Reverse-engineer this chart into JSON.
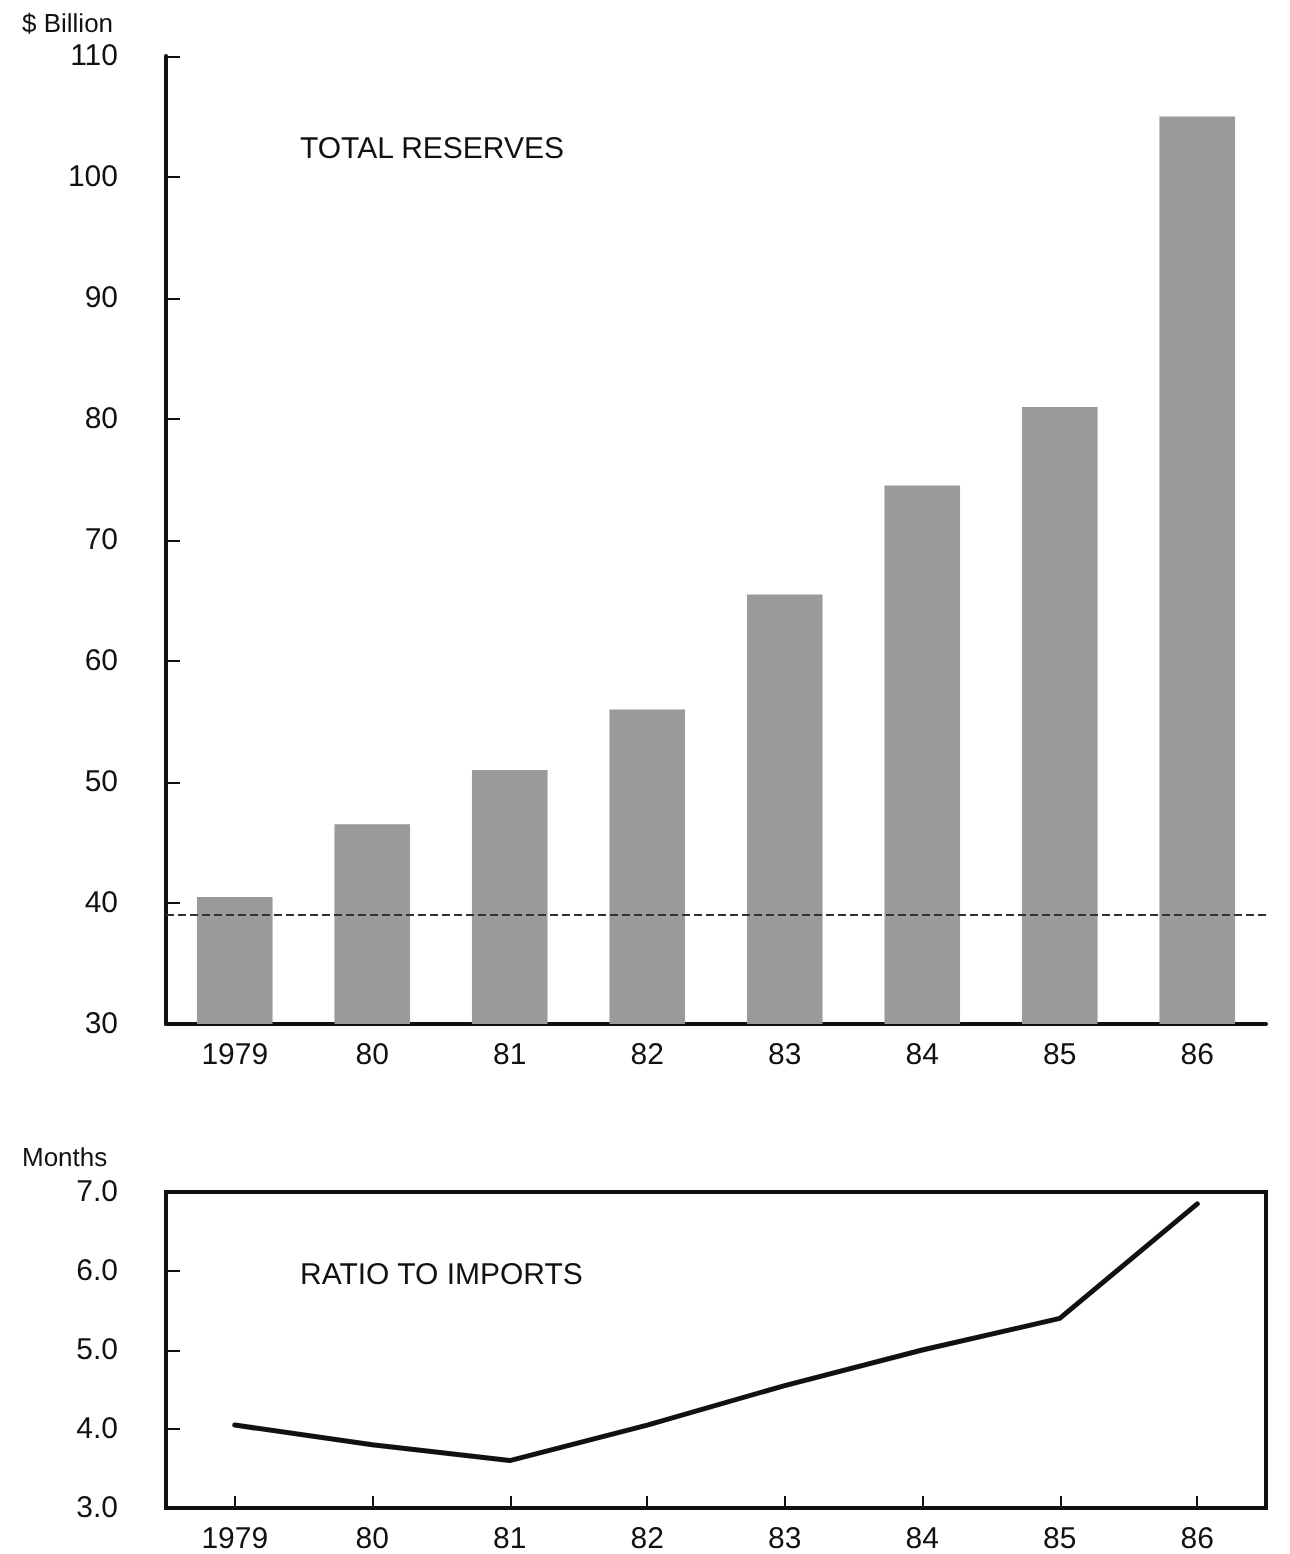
{
  "chart_data": [
    {
      "type": "bar",
      "title": "TOTAL RESERVES",
      "ylabel": "$ Billion",
      "categories": [
        "1979",
        "80",
        "81",
        "82",
        "83",
        "84",
        "85",
        "86"
      ],
      "series": [
        {
          "color": "#9a9a9a",
          "values": [
            40.5,
            46.5,
            51,
            56,
            65.5,
            74.5,
            81,
            105
          ]
        }
      ],
      "ylim": [
        30,
        110
      ],
      "yticks": [
        30,
        40,
        50,
        60,
        70,
        80,
        90,
        100,
        110
      ],
      "grid": false,
      "ref_lines": [
        {
          "axis": "y",
          "value": 39,
          "line_style": "dashed",
          "color": "#333333"
        }
      ]
    },
    {
      "type": "line",
      "title": "RATIO TO IMPORTS",
      "ylabel": "Months",
      "categories": [
        "1979",
        "80",
        "81",
        "82",
        "83",
        "84",
        "85",
        "86"
      ],
      "series": [
        {
          "color": "#111111",
          "values": [
            4.05,
            3.8,
            3.6,
            4.05,
            4.55,
            5.0,
            5.4,
            6.85
          ]
        }
      ],
      "ylim": [
        3,
        7
      ],
      "yticks": [
        {
          "value": 3,
          "label": "3.0"
        },
        {
          "value": 4,
          "label": "4.0"
        },
        {
          "value": 5,
          "label": "5.0"
        },
        {
          "value": 6,
          "label": "6.0"
        },
        {
          "value": 7,
          "label": "7.0"
        }
      ],
      "grid": false,
      "marker": "none",
      "line_style": "solid"
    }
  ]
}
